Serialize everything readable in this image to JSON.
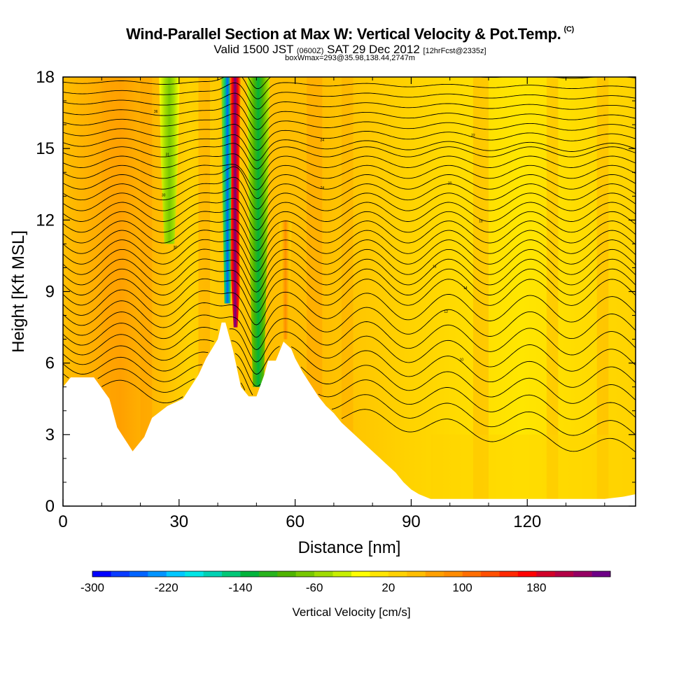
{
  "header": {
    "title": "Wind-Parallel Section at Max W: Vertical Velocity & Pot.Temp.",
    "title_suffix": "(C)",
    "valid_prefix": "Valid 1500 JST",
    "valid_zulu": "(0600Z)",
    "valid_date": "SAT 29 Dec 2012",
    "forecast_info": "[12hrFcst@2335z]",
    "box_info": "boxWmax=293@35.98,138.44,2747m"
  },
  "chart_data": {
    "type": "heatmap",
    "xlabel": "Distance [nm]",
    "ylabel": "Height [Kft MSL]",
    "xlim": [
      0,
      148
    ],
    "ylim": [
      0,
      18
    ],
    "x_ticks": [
      0,
      30,
      60,
      90,
      120
    ],
    "y_ticks": [
      0,
      3,
      6,
      9,
      12,
      15,
      18
    ],
    "terrain_profile": {
      "x": [
        0,
        2,
        8,
        12,
        14,
        18,
        21,
        23,
        27,
        31,
        35,
        37,
        40,
        41,
        42,
        44,
        46,
        48,
        50,
        52,
        53,
        55,
        57,
        59,
        60,
        62,
        64,
        66,
        68,
        70,
        72,
        74,
        76,
        78,
        80,
        82,
        84,
        86,
        88,
        90,
        92,
        95,
        100,
        110,
        120,
        130,
        140,
        145,
        148
      ],
      "y": [
        5.0,
        5.4,
        5.4,
        4.5,
        3.3,
        2.3,
        2.9,
        3.7,
        4.2,
        4.5,
        5.5,
        6.2,
        7.0,
        7.7,
        7.7,
        6.5,
        5.0,
        4.6,
        4.6,
        5.5,
        6.1,
        6.1,
        6.9,
        6.6,
        6.2,
        5.6,
        5.1,
        4.6,
        4.2,
        3.9,
        3.5,
        3.2,
        2.9,
        2.6,
        2.3,
        2.0,
        1.7,
        1.4,
        1.0,
        0.7,
        0.5,
        0.3,
        0.3,
        0.3,
        0.3,
        0.3,
        0.3,
        0.4,
        0.5
      ]
    },
    "updraft_cores": [
      {
        "x": 44.5,
        "y_bottom": 7.5,
        "y_top": 18.0,
        "max_w": 293
      },
      {
        "x": 57.5,
        "y_bottom": 7.0,
        "y_top": 12.0,
        "max_w": 80
      }
    ],
    "downdraft_cores": [
      {
        "x": 42.5,
        "y_bottom": 8.5,
        "y_top": 18.0,
        "min_w": -260
      },
      {
        "x": 50.5,
        "y_bottom": 5.0,
        "y_top": 18.0,
        "min_w": -140
      },
      {
        "x": 27.5,
        "y_bottom": 11.0,
        "y_top": 18.0,
        "min_w": -80
      }
    ],
    "contour_labels": [
      "36",
      "31",
      "30",
      "30",
      "24",
      "24",
      "22",
      "20",
      "18",
      "16",
      "14",
      "12",
      "10"
    ],
    "colorbar": {
      "label": "Vertical Velocity [cm/s]",
      "min": -300,
      "max": 260,
      "step": 20,
      "tick_labels": [
        "-300",
        "-220",
        "-140",
        "-60",
        "20",
        "100",
        "180"
      ],
      "colors": [
        "#0000ff",
        "#0a3cff",
        "#0064ff",
        "#0094ff",
        "#00c8ff",
        "#00e6e6",
        "#00d2b4",
        "#00c878",
        "#00b43c",
        "#28b41e",
        "#50b400",
        "#78c800",
        "#a0dc00",
        "#c8f000",
        "#ffff00",
        "#ffe600",
        "#ffd200",
        "#ffbe00",
        "#ffa000",
        "#ff8c00",
        "#ff6e00",
        "#ff5000",
        "#ff2800",
        "#ff0000",
        "#d20028",
        "#b40046",
        "#960064",
        "#6e0087"
      ]
    }
  }
}
